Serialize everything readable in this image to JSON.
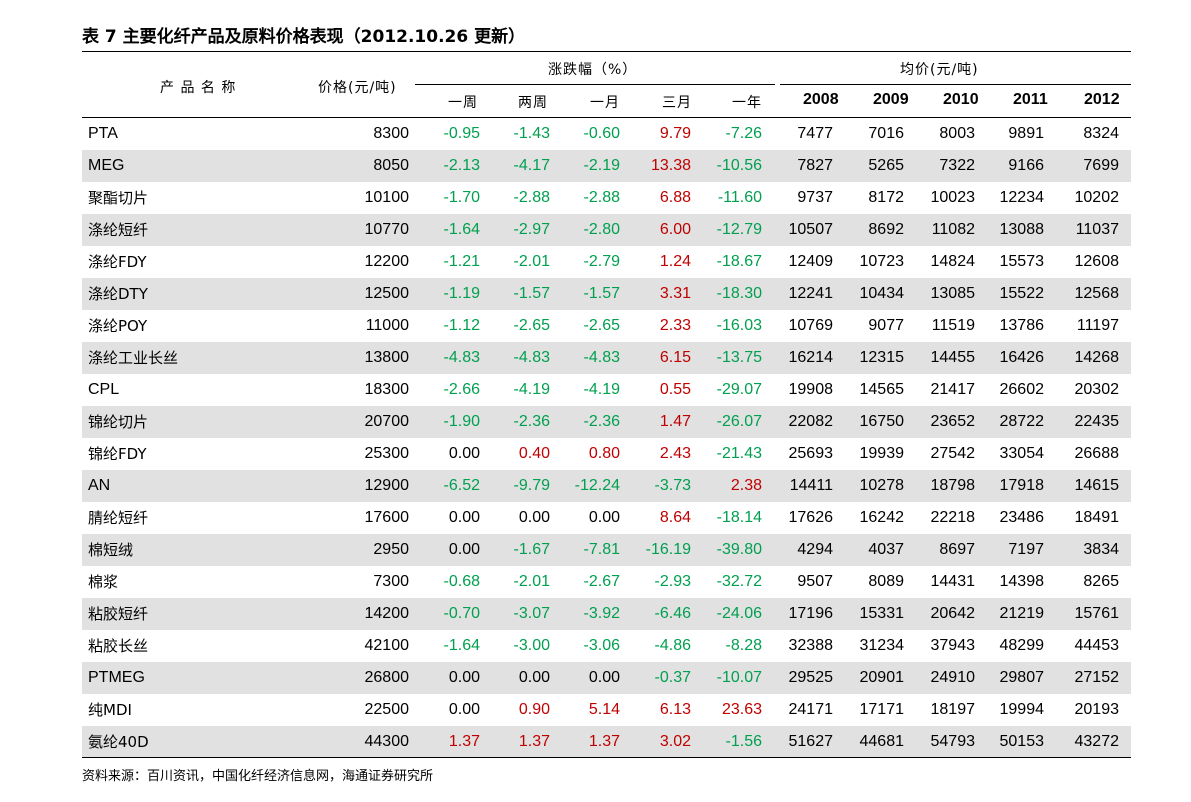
{
  "title": "表 7 主要化纤产品及原料价格表现（2012.10.26 更新）",
  "header": {
    "product_name": "产 品 名 称",
    "price_label": "价格(元/吨)",
    "change_group": "涨跌幅（%）",
    "change_cols": [
      "一周",
      "两周",
      "一月",
      "三月",
      "一年"
    ],
    "avg_group": "均价(元/吨)",
    "avg_cols": [
      "2008",
      "2009",
      "2010",
      "2011",
      "2012"
    ]
  },
  "colors": {
    "positive": "#c00000",
    "negative": "#00a050",
    "stripe": "#e1e1e1"
  },
  "rows": [
    {
      "name": "PTA",
      "price": "8300",
      "changes": [
        "-0.95",
        "-1.43",
        "-0.60",
        "9.79",
        "-7.26"
      ],
      "avgs": [
        "7477",
        "7016",
        "8003",
        "9891",
        "8324"
      ]
    },
    {
      "name": "MEG",
      "price": "8050",
      "changes": [
        "-2.13",
        "-4.17",
        "-2.19",
        "13.38",
        "-10.56"
      ],
      "avgs": [
        "7827",
        "5265",
        "7322",
        "9166",
        "7699"
      ]
    },
    {
      "name": "聚酯切片",
      "price": "10100",
      "changes": [
        "-1.70",
        "-2.88",
        "-2.88",
        "6.88",
        "-11.60"
      ],
      "avgs": [
        "9737",
        "8172",
        "10023",
        "12234",
        "10202"
      ]
    },
    {
      "name": "涤纶短纤",
      "price": "10770",
      "changes": [
        "-1.64",
        "-2.97",
        "-2.80",
        "6.00",
        "-12.79"
      ],
      "avgs": [
        "10507",
        "8692",
        "11082",
        "13088",
        "11037"
      ]
    },
    {
      "name": "涤纶FDY",
      "price": "12200",
      "changes": [
        "-1.21",
        "-2.01",
        "-2.79",
        "1.24",
        "-18.67"
      ],
      "avgs": [
        "12409",
        "10723",
        "14824",
        "15573",
        "12608"
      ]
    },
    {
      "name": "涤纶DTY",
      "price": "12500",
      "changes": [
        "-1.19",
        "-1.57",
        "-1.57",
        "3.31",
        "-18.30"
      ],
      "avgs": [
        "12241",
        "10434",
        "13085",
        "15522",
        "12568"
      ]
    },
    {
      "name": "涤纶POY",
      "price": "11000",
      "changes": [
        "-1.12",
        "-2.65",
        "-2.65",
        "2.33",
        "-16.03"
      ],
      "avgs": [
        "10769",
        "9077",
        "11519",
        "13786",
        "11197"
      ]
    },
    {
      "name": "涤纶工业长丝",
      "price": "13800",
      "changes": [
        "-4.83",
        "-4.83",
        "-4.83",
        "6.15",
        "-13.75"
      ],
      "avgs": [
        "16214",
        "12315",
        "14455",
        "16426",
        "14268"
      ]
    },
    {
      "name": "CPL",
      "price": "18300",
      "changes": [
        "-2.66",
        "-4.19",
        "-4.19",
        "0.55",
        "-29.07"
      ],
      "avgs": [
        "19908",
        "14565",
        "21417",
        "26602",
        "20302"
      ]
    },
    {
      "name": "锦纶切片",
      "price": "20700",
      "changes": [
        "-1.90",
        "-2.36",
        "-2.36",
        "1.47",
        "-26.07"
      ],
      "avgs": [
        "22082",
        "16750",
        "23652",
        "28722",
        "22435"
      ]
    },
    {
      "name": "锦纶FDY",
      "price": "25300",
      "changes": [
        "0.00",
        "0.40",
        "0.80",
        "2.43",
        "-21.43"
      ],
      "avgs": [
        "25693",
        "19939",
        "27542",
        "33054",
        "26688"
      ]
    },
    {
      "name": "AN",
      "price": "12900",
      "changes": [
        "-6.52",
        "-9.79",
        "-12.24",
        "-3.73",
        "2.38"
      ],
      "avgs": [
        "14411",
        "10278",
        "18798",
        "17918",
        "14615"
      ]
    },
    {
      "name": "腈纶短纤",
      "price": "17600",
      "changes": [
        "0.00",
        "0.00",
        "0.00",
        "8.64",
        "-18.14"
      ],
      "avgs": [
        "17626",
        "16242",
        "22218",
        "23486",
        "18491"
      ]
    },
    {
      "name": "棉短绒",
      "price": "2950",
      "changes": [
        "0.00",
        "-1.67",
        "-7.81",
        "-16.19",
        "-39.80"
      ],
      "avgs": [
        "4294",
        "4037",
        "8697",
        "7197",
        "3834"
      ]
    },
    {
      "name": "棉浆",
      "price": "7300",
      "changes": [
        "-0.68",
        "-2.01",
        "-2.67",
        "-2.93",
        "-32.72"
      ],
      "avgs": [
        "9507",
        "8089",
        "14431",
        "14398",
        "8265"
      ]
    },
    {
      "name": "粘胶短纤",
      "price": "14200",
      "changes": [
        "-0.70",
        "-3.07",
        "-3.92",
        "-6.46",
        "-24.06"
      ],
      "avgs": [
        "17196",
        "15331",
        "20642",
        "21219",
        "15761"
      ]
    },
    {
      "name": "粘胶长丝",
      "price": "42100",
      "changes": [
        "-1.64",
        "-3.00",
        "-3.06",
        "-4.86",
        "-8.28"
      ],
      "avgs": [
        "32388",
        "31234",
        "37943",
        "48299",
        "44453"
      ]
    },
    {
      "name": "PTMEG",
      "price": "26800",
      "changes": [
        "0.00",
        "0.00",
        "0.00",
        "-0.37",
        "-10.07"
      ],
      "avgs": [
        "29525",
        "20901",
        "24910",
        "29807",
        "27152"
      ]
    },
    {
      "name": "纯MDI",
      "price": "22500",
      "changes": [
        "0.00",
        "0.90",
        "5.14",
        "6.13",
        "23.63"
      ],
      "avgs": [
        "24171",
        "17171",
        "18197",
        "19994",
        "20193"
      ]
    },
    {
      "name": "氨纶40D",
      "price": "44300",
      "changes": [
        "1.37",
        "1.37",
        "1.37",
        "3.02",
        "-1.56"
      ],
      "avgs": [
        "51627",
        "44681",
        "54793",
        "50153",
        "43272"
      ]
    }
  ],
  "source": "资料来源：百川资讯，中国化纤经济信息网，海通证券研究所"
}
